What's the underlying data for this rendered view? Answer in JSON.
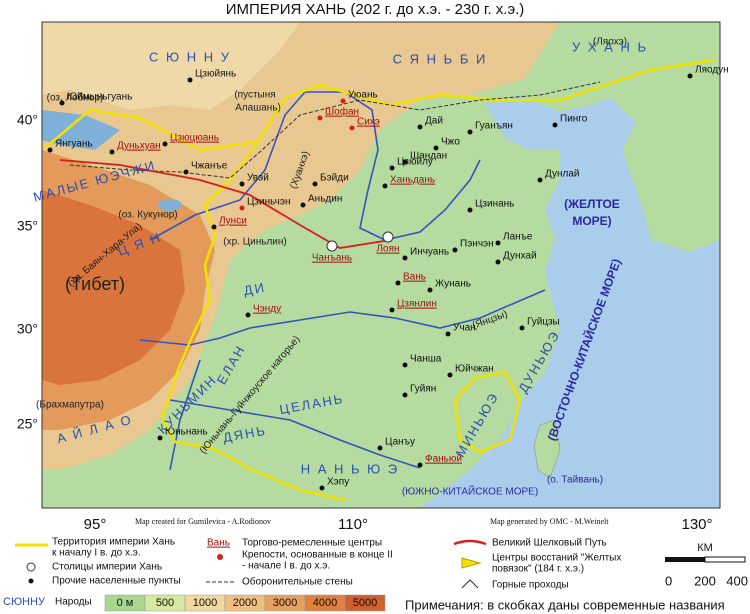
{
  "title": "ИМПЕРИЯ ХАНЬ (202 г. до х.э. - 230 г. х.э.)",
  "latitude_labels": [
    "40°",
    "35°",
    "30°",
    "25°"
  ],
  "longitude_labels": [
    "95°",
    "110°",
    "130°"
  ],
  "credits": [
    "Map created for Gumilevica - A.Rodionov",
    "Map generated by OMC - M.Weinelt"
  ],
  "peoples": [
    "С Ю Н Н У",
    "С Я Н Ь Б И",
    "У Х А Н Ь",
    "МАЛЫЕ ЮЭЧЖИ",
    "Ц Я Н",
    "ДИ",
    "ЕЛАН",
    "КУНЬМИН",
    "ДЯНЬ",
    "А Й Л А О",
    "ЦЕЛАНЬ",
    "Н А Н Ь Ю Э",
    "МИНЬЮЭ",
    "ДУНЬЮЭ"
  ],
  "geography": [
    "(пустыня",
    "Алашань)",
    "(Тибет)",
    "(оз. Лобнор)",
    "(оз. Кукунор)",
    "(хр. Баян-Хара-Ула)",
    "(хр. Циньлин)",
    "(Брахмапутра)",
    "(Юньнань-Гуйчжоуское нагорье)",
    "(Хуанхэ)",
    "(Янцзы)",
    "(Ляохэ)"
  ],
  "seas": [
    "(ЖЕЛТОЕ",
    "МОРЕ)",
    "(ВОСТОЧНО-КИТАЙСКОЕ МОРЕ)",
    "(ЮЖНО-КИТАЙСКОЕ МОРЕ)",
    "(о. Тайвань)"
  ],
  "cities": [
    "Цзюйянь",
    "Юймыньгуань",
    "Янгуань",
    "Дуньхуан",
    "Цзюцюань",
    "Чжанъе",
    "Увэй",
    "Цзиньчэн",
    "Лунси",
    "Уюань",
    "Шофан",
    "Сихэ",
    "Дай",
    "Чжо",
    "Гуанъян",
    "Пинго",
    "Ляодун",
    "Шандан",
    "Бэйди",
    "Аньдин",
    "Чанъань",
    "Лоян",
    "Инчуань",
    "Вань",
    "Жунань",
    "Пэнчэн",
    "Дунхай",
    "Ланъе",
    "Дунлай",
    "Цзинань",
    "Ханьдань",
    "Цзюйлу",
    "Чэнду",
    "Цзянлин",
    "Учан",
    "Гуйцзы",
    "Юйчжан",
    "Чанша",
    "Гуйян",
    "Юньнань",
    "Фаньюй",
    "Хэпу",
    "Цанъу"
  ],
  "legend": {
    "territory": [
      "Территория империи Хань",
      "к началу I в. до х.э."
    ],
    "capitals": "Столицы империи Хань",
    "settlements": "Прочие населенные пункты",
    "trade_sample": "Вань",
    "trade": "Торгово-ремесленные центры",
    "forts": [
      "Крепости, основанные в конце II",
      "- начале I в. до х.э."
    ],
    "walls": "Оборонительные стены",
    "silk_road": "Великий Шелковый Путь",
    "uprisings": [
      "Центры восстаний \"Желтых",
      "повязок\" (184 г. х.э.)"
    ],
    "passes": "Горные проходы",
    "peoples_sample": "СЮННУ",
    "peoples": "Народы",
    "scale_unit": "КМ",
    "scale_labels": [
      "0",
      "200",
      "400"
    ],
    "elevation": [
      "0 м",
      "500",
      "1000",
      "2000",
      "3000",
      "4000",
      "5000"
    ],
    "note": "Примечания: в скобках даны современные названия"
  }
}
